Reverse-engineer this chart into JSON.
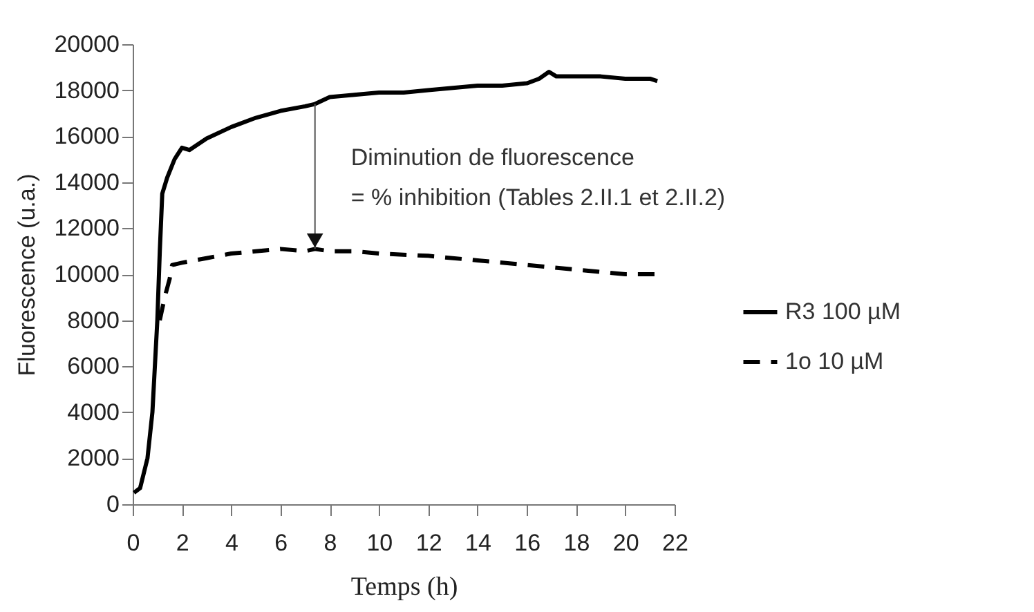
{
  "chart_data": {
    "type": "line",
    "xlabel": "Temps (h)",
    "ylabel": "Fluorescence (u.a.)",
    "xlim": [
      0,
      22
    ],
    "xticks": [
      0,
      2,
      4,
      6,
      8,
      10,
      12,
      14,
      16,
      18,
      20,
      22
    ],
    "ylim": [
      0,
      20000
    ],
    "yticks": [
      0,
      2000,
      4000,
      6000,
      8000,
      10000,
      12000,
      14000,
      16000,
      18000,
      20000
    ],
    "grid": false,
    "legend": "right",
    "marker": "none",
    "series": [
      {
        "name": "R3 100 µM",
        "color": "#000000",
        "line_style": "solid",
        "x": [
          0.05,
          0.3,
          0.6,
          0.8,
          1.0,
          1.1,
          1.2,
          1.4,
          1.7,
          2.0,
          2.3,
          3,
          4,
          5,
          6,
          7,
          7.4,
          8,
          9,
          10,
          11,
          12,
          13,
          14,
          15,
          16,
          16.5,
          16.9,
          17.2,
          18,
          19,
          20,
          21,
          21.3
        ],
        "values": [
          500,
          700,
          2000,
          4000,
          8000,
          11000,
          13500,
          14200,
          15000,
          15500,
          15400,
          15900,
          16400,
          16800,
          17100,
          17300,
          17400,
          17700,
          17800,
          17900,
          17900,
          18000,
          18100,
          18200,
          18200,
          18300,
          18500,
          18800,
          18600,
          18600,
          18600,
          18500,
          18500,
          18400
        ]
      },
      {
        "name": "1o 10 µM",
        "color": "#000000",
        "line_style": "dashed",
        "x": [
          1.1,
          1.3,
          1.5,
          1.6,
          2,
          3,
          4,
          5,
          6,
          7,
          7.4,
          8,
          9,
          10,
          12,
          14,
          16,
          18,
          20,
          21.3
        ],
        "values": [
          8000,
          9000,
          9800,
          10400,
          10500,
          10700,
          10900,
          11000,
          11100,
          11000,
          11100,
          11000,
          11000,
          10900,
          10800,
          10600,
          10400,
          10200,
          10000,
          10000
        ]
      }
    ],
    "annotations": [
      {
        "text": "Diminution de fluorescence\n= % inhibition (Tables 2.II.1 et 2.II.2)",
        "x": 7.4,
        "y": 17400
      }
    ]
  }
}
